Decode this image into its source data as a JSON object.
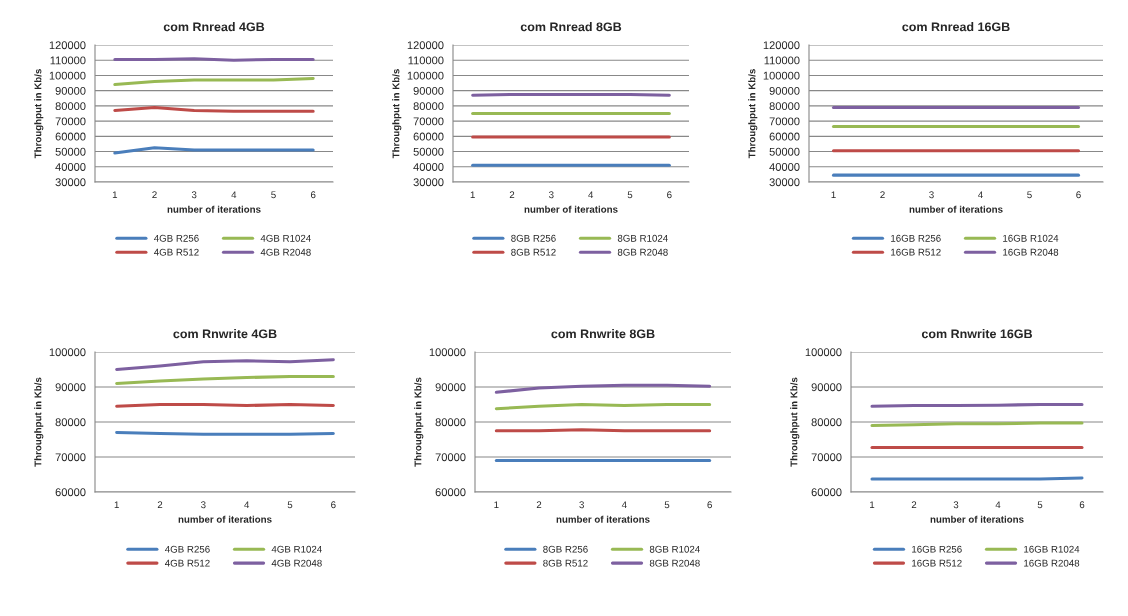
{
  "chart_data": [
    {
      "type": "line",
      "title": "com Rnread 4GB",
      "xlabel": "number of iterations",
      "ylabel": "Throughput in Kb/s",
      "categories": [
        "1",
        "2",
        "3",
        "4",
        "5",
        "6"
      ],
      "ylim": [
        30000,
        120000
      ],
      "yticks": [
        30000,
        40000,
        50000,
        60000,
        70000,
        80000,
        90000,
        100000,
        110000,
        120000
      ],
      "grid": "y",
      "legend": "bottom",
      "marker": "none",
      "line_style": "solid",
      "series": [
        {
          "name": "4GB R256",
          "color": "#4a7ebb",
          "values": [
            49000,
            52500,
            51000,
            51000,
            51000,
            51000
          ]
        },
        {
          "name": "4GB R512",
          "color": "#be4b48",
          "values": [
            77000,
            79000,
            77000,
            76500,
            76500,
            76500
          ]
        },
        {
          "name": "4GB R1024",
          "color": "#98b954",
          "values": [
            94000,
            96000,
            97000,
            97000,
            97000,
            98000
          ]
        },
        {
          "name": "4GB R2048",
          "color": "#7d60a0",
          "values": [
            110500,
            110500,
            111000,
            110000,
            110500,
            110500
          ]
        }
      ]
    },
    {
      "type": "line",
      "title": "com Rnread 8GB",
      "xlabel": "number of iterations",
      "ylabel": "Throughput in Kb/s",
      "categories": [
        "1",
        "2",
        "3",
        "4",
        "5",
        "6"
      ],
      "ylim": [
        30000,
        120000
      ],
      "yticks": [
        30000,
        40000,
        50000,
        60000,
        70000,
        80000,
        90000,
        100000,
        110000,
        120000
      ],
      "grid": "y",
      "legend": "bottom",
      "marker": "none",
      "line_style": "solid",
      "series": [
        {
          "name": "8GB R256",
          "color": "#4a7ebb",
          "values": [
            41000,
            41000,
            41000,
            41000,
            41000,
            41000
          ]
        },
        {
          "name": "8GB R512",
          "color": "#be4b48",
          "values": [
            59500,
            59500,
            59500,
            59500,
            59500,
            59500
          ]
        },
        {
          "name": "8GB R1024",
          "color": "#98b954",
          "values": [
            75000,
            75000,
            75000,
            75000,
            75000,
            75000
          ]
        },
        {
          "name": "8GB R2048",
          "color": "#7d60a0",
          "values": [
            87000,
            87500,
            87500,
            87500,
            87500,
            87000
          ]
        }
      ]
    },
    {
      "type": "line",
      "title": "com Rnread 16GB",
      "xlabel": "number of iterations",
      "ylabel": "Throughput in Kb/s",
      "categories": [
        "1",
        "2",
        "3",
        "4",
        "5",
        "6"
      ],
      "ylim": [
        30000,
        120000
      ],
      "yticks": [
        30000,
        40000,
        50000,
        60000,
        70000,
        80000,
        90000,
        100000,
        110000,
        120000
      ],
      "grid": "y",
      "legend": "bottom",
      "marker": "none",
      "line_style": "solid",
      "series": [
        {
          "name": "16GB R256",
          "color": "#4a7ebb",
          "values": [
            34500,
            34500,
            34500,
            34500,
            34500,
            34500
          ]
        },
        {
          "name": "16GB R512",
          "color": "#be4b48",
          "values": [
            50500,
            50500,
            50500,
            50500,
            50500,
            50500
          ]
        },
        {
          "name": "16GB R1024",
          "color": "#98b954",
          "values": [
            66500,
            66500,
            66500,
            66500,
            66500,
            66500
          ]
        },
        {
          "name": "16GB R2048",
          "color": "#7d60a0",
          "values": [
            79000,
            79000,
            79000,
            79000,
            79000,
            79000
          ]
        }
      ]
    },
    {
      "type": "line",
      "title": "com Rnwrite 4GB",
      "xlabel": "number of iterations",
      "ylabel": "Throughput in Kb/s",
      "categories": [
        "1",
        "2",
        "3",
        "4",
        "5",
        "6"
      ],
      "ylim": [
        60000,
        100000
      ],
      "yticks": [
        60000,
        70000,
        80000,
        90000,
        100000
      ],
      "grid": "y",
      "legend": "bottom",
      "marker": "none",
      "line_style": "solid",
      "series": [
        {
          "name": "4GB R256",
          "color": "#4a7ebb",
          "values": [
            77000,
            76700,
            76500,
            76500,
            76500,
            76700
          ]
        },
        {
          "name": "4GB R512",
          "color": "#be4b48",
          "values": [
            84500,
            85000,
            85000,
            84700,
            85000,
            84700
          ]
        },
        {
          "name": "4GB R1024",
          "color": "#98b954",
          "values": [
            91000,
            91700,
            92300,
            92700,
            93000,
            93000
          ]
        },
        {
          "name": "4GB R2048",
          "color": "#7d60a0",
          "values": [
            95000,
            96000,
            97200,
            97500,
            97200,
            97800
          ]
        }
      ]
    },
    {
      "type": "line",
      "title": "com Rnwrite 8GB",
      "xlabel": "number of iterations",
      "ylabel": "Throughput in Kb/s",
      "categories": [
        "1",
        "2",
        "3",
        "4",
        "5",
        "6"
      ],
      "ylim": [
        60000,
        100000
      ],
      "yticks": [
        60000,
        70000,
        80000,
        90000,
        100000
      ],
      "grid": "y",
      "legend": "bottom",
      "marker": "none",
      "line_style": "solid",
      "series": [
        {
          "name": "8GB R256",
          "color": "#4a7ebb",
          "values": [
            69000,
            69000,
            69000,
            69000,
            69000,
            69000
          ]
        },
        {
          "name": "8GB R512",
          "color": "#be4b48",
          "values": [
            77500,
            77500,
            77800,
            77500,
            77500,
            77500
          ]
        },
        {
          "name": "8GB R1024",
          "color": "#98b954",
          "values": [
            83800,
            84500,
            85000,
            84700,
            85000,
            85000
          ]
        },
        {
          "name": "8GB R2048",
          "color": "#7d60a0",
          "values": [
            88500,
            89700,
            90200,
            90500,
            90500,
            90200
          ]
        }
      ]
    },
    {
      "type": "line",
      "title": "com Rnwrite 16GB",
      "xlabel": "number of iterations",
      "ylabel": "Throughput in Kb/s",
      "categories": [
        "1",
        "2",
        "3",
        "4",
        "5",
        "6"
      ],
      "ylim": [
        60000,
        100000
      ],
      "yticks": [
        60000,
        70000,
        80000,
        90000,
        100000
      ],
      "grid": "y",
      "legend": "bottom",
      "marker": "none",
      "line_style": "solid",
      "series": [
        {
          "name": "16GB R256",
          "color": "#4a7ebb",
          "values": [
            63700,
            63700,
            63700,
            63700,
            63700,
            64000
          ]
        },
        {
          "name": "16GB R512",
          "color": "#be4b48",
          "values": [
            72700,
            72700,
            72700,
            72700,
            72700,
            72700
          ]
        },
        {
          "name": "16GB R1024",
          "color": "#98b954",
          "values": [
            79000,
            79200,
            79500,
            79500,
            79700,
            79700
          ]
        },
        {
          "name": "16GB R2048",
          "color": "#7d60a0",
          "values": [
            84500,
            84700,
            84700,
            84800,
            85000,
            85000
          ]
        }
      ]
    }
  ]
}
